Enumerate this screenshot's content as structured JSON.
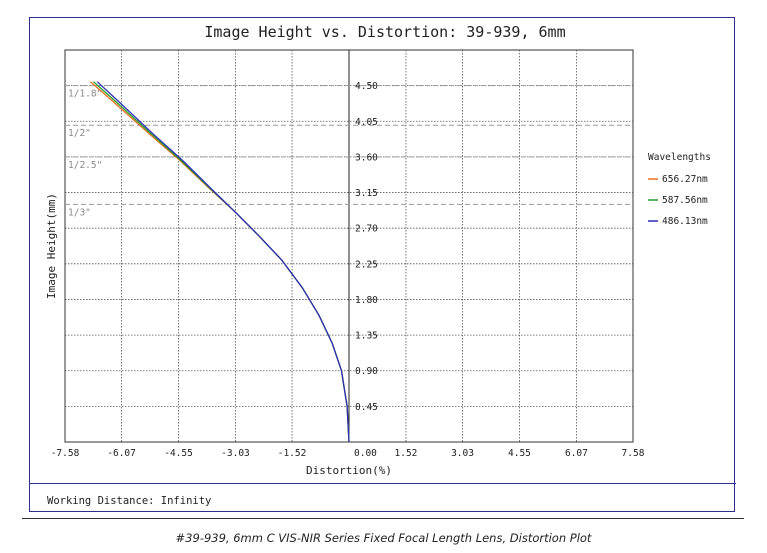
{
  "chart_data": {
    "type": "line",
    "title": "Image Height vs. Distortion: 39-939, 6mm",
    "xlabel": "Distortion(%)",
    "ylabel": "Image Height(mm)",
    "xlim": [
      -7.58,
      7.58
    ],
    "ylim": [
      0,
      4.95
    ],
    "x_ticks": [
      "-7.58",
      "-6.07",
      "-4.55",
      "-3.03",
      "-1.52",
      "0.00",
      "1.52",
      "3.03",
      "4.55",
      "6.07",
      "7.58"
    ],
    "y_ticks": [
      "0.45",
      "0.90",
      "1.35",
      "1.80",
      "2.25",
      "2.70",
      "3.15",
      "3.60",
      "4.05",
      "4.50"
    ],
    "grid": true,
    "legend_title": "Wavelengths",
    "legend_position": "right",
    "series": [
      {
        "name": "656.27nm",
        "color": "#e8731c",
        "x": [
          0.0,
          -0.05,
          -0.2,
          -0.45,
          -0.8,
          -1.25,
          -1.8,
          -2.4,
          -3.03,
          -3.72,
          -4.5,
          -5.35,
          -6.3,
          -6.9
        ],
        "y": [
          0.0,
          0.45,
          0.9,
          1.25,
          1.6,
          1.95,
          2.3,
          2.6,
          2.9,
          3.2,
          3.55,
          3.9,
          4.3,
          4.55
        ]
      },
      {
        "name": "587.56nm",
        "color": "#2a9d2a",
        "x": [
          0.0,
          -0.05,
          -0.2,
          -0.45,
          -0.8,
          -1.25,
          -1.8,
          -2.4,
          -3.03,
          -3.7,
          -4.47,
          -5.3,
          -6.23,
          -6.82
        ],
        "y": [
          0.0,
          0.45,
          0.9,
          1.25,
          1.6,
          1.95,
          2.3,
          2.6,
          2.9,
          3.2,
          3.55,
          3.9,
          4.3,
          4.55
        ]
      },
      {
        "name": "486.13nm",
        "color": "#2b2fb5",
        "x": [
          0.0,
          -0.05,
          -0.2,
          -0.45,
          -0.8,
          -1.25,
          -1.8,
          -2.4,
          -3.03,
          -3.68,
          -4.43,
          -5.25,
          -6.15,
          -6.72
        ],
        "y": [
          0.0,
          0.45,
          0.9,
          1.25,
          1.6,
          1.95,
          2.3,
          2.6,
          2.9,
          3.2,
          3.55,
          3.9,
          4.3,
          4.55
        ]
      }
    ],
    "sensor_lines": [
      {
        "label": "1/1.8\"",
        "y": 4.5
      },
      {
        "label": "1/2\"",
        "y": 4.0
      },
      {
        "label": "1/2.5\"",
        "y": 3.6
      },
      {
        "label": "1/3\"",
        "y": 3.0
      }
    ],
    "footer": "Working Distance: Infinity"
  },
  "caption": "#39-939, 6mm C VIS-NIR Series Fixed Focal Length Lens, Distortion Plot"
}
